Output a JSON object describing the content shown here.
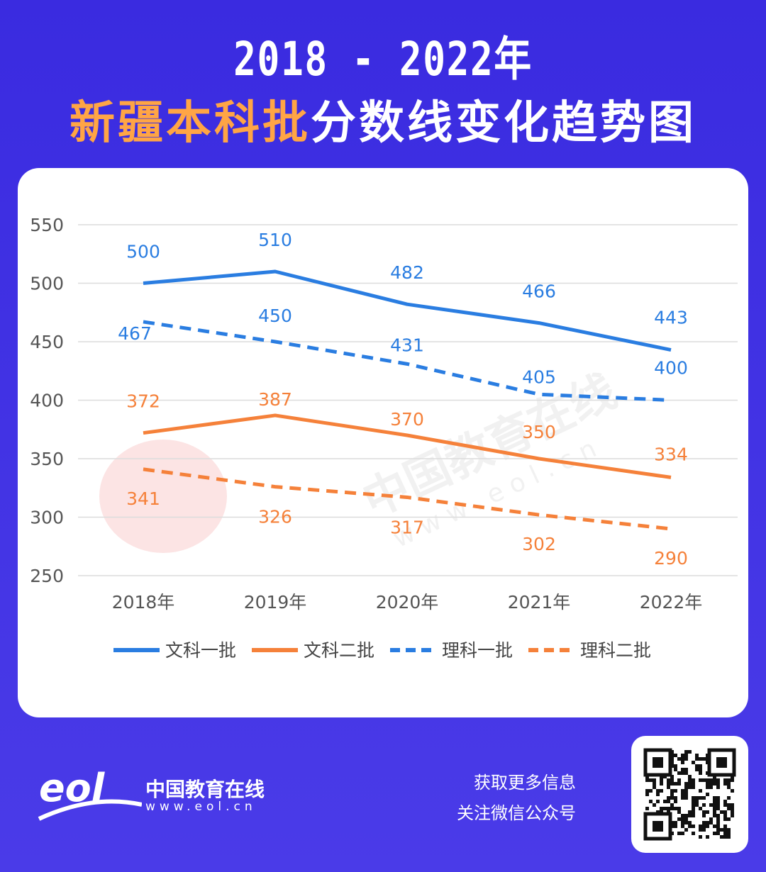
{
  "title": {
    "line1": "2018 - 2022年",
    "highlight": "新疆本科批",
    "rest": "分数线变化趋势图"
  },
  "colors": {
    "background": "#3d2fe2",
    "blue": "#2a7de1",
    "orange": "#f5813a",
    "highlight": "#ffa545"
  },
  "chart_data": {
    "type": "line",
    "categories": [
      "2018年",
      "2019年",
      "2020年",
      "2021年",
      "2022年"
    ],
    "ylim": [
      250,
      550
    ],
    "yticks": [
      250,
      300,
      350,
      400,
      450,
      500,
      550
    ],
    "grid": true,
    "legend_placement": "bottom",
    "series": [
      {
        "name": "文科一批",
        "values": [
          500,
          510,
          482,
          466,
          443
        ],
        "color": "#2a7de1",
        "style": "solid"
      },
      {
        "name": "文科二批",
        "values": [
          372,
          387,
          370,
          350,
          334
        ],
        "color": "#f5813a",
        "style": "solid"
      },
      {
        "name": "理科一批",
        "values": [
          467,
          450,
          431,
          405,
          400
        ],
        "color": "#2a7de1",
        "style": "dashed"
      },
      {
        "name": "理科二批",
        "values": [
          341,
          326,
          317,
          302,
          290
        ],
        "color": "#f5813a",
        "style": "dashed"
      }
    ]
  },
  "watermark": {
    "text": "中国教育在线",
    "url": "w w w . e o l . c n"
  },
  "footer": {
    "brand": "中国教育在线",
    "url": "www.eol.cn",
    "logo_text": "eol",
    "info_line1": "获取更多信息",
    "info_line2": "关注微信公众号"
  }
}
